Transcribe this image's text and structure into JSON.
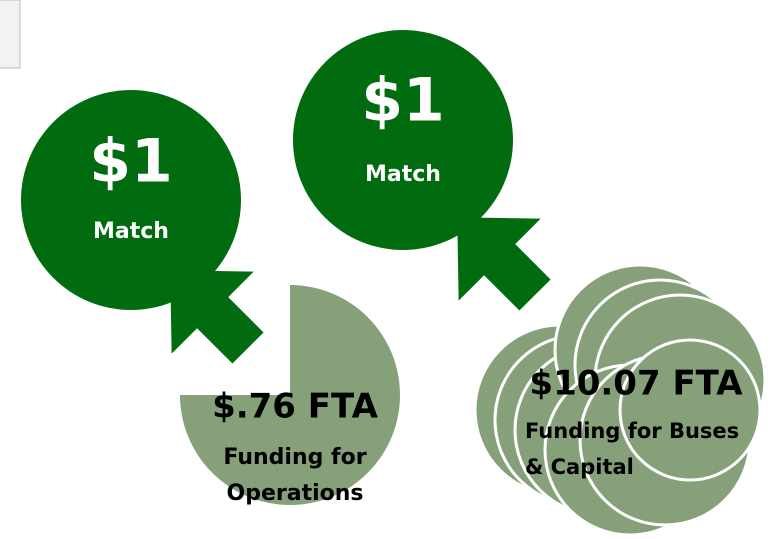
{
  "left_match": {
    "amount": "$1",
    "label": "Match"
  },
  "right_match": {
    "amount": "$1",
    "label": "Match"
  },
  "operations": {
    "amount": "$.76 FTA",
    "line1": "Funding for",
    "line2": "Operations"
  },
  "capital": {
    "amount": "$10.07 FTA",
    "line1": "Funding for Buses",
    "line2": "& Capital"
  }
}
